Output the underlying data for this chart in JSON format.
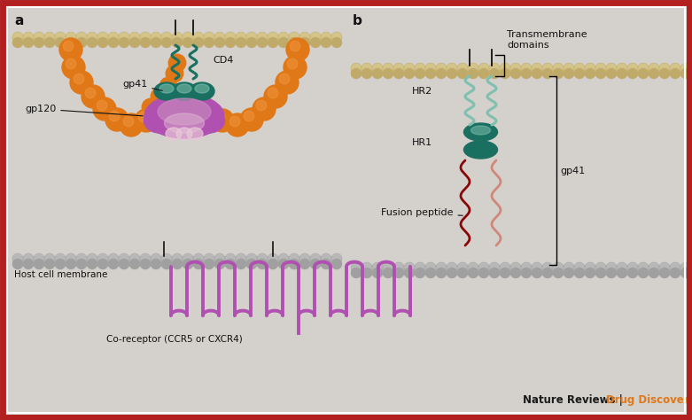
{
  "bg_color": "#d4d0cc",
  "border_color_outer": "#b22020",
  "border_color_inner": "#ffffff",
  "tan_light": "#d4c48a",
  "tan_dark": "#c0aa6a",
  "gray_mem_light": "#b8b8b8",
  "gray_mem_dark": "#a0a0a0",
  "orange": "#e07818",
  "orange_hi": "#f09840",
  "purple": "#b050b0",
  "mauve": "#c890c0",
  "pink": "#e8c8d8",
  "teal_dark": "#1a7060",
  "teal_mid": "#2a9080",
  "teal_light": "#80c0b0",
  "red_dark": "#880808",
  "salmon": "#d08878",
  "black": "#111111",
  "orange_journal": "#e07818",
  "label_a": "a",
  "label_b": "b",
  "lbl_gp41": "gp41",
  "lbl_gp120": "gp120",
  "lbl_cd4": "CD4",
  "lbl_host": "Host cell membrane",
  "lbl_coreceptor": "Co-receptor (CCR5 or CXCR4)",
  "lbl_transmem": "Transmembrane\ndomains",
  "lbl_hr2": "HR2",
  "lbl_hr1": "HR1",
  "lbl_gp41b": "gp41",
  "lbl_fusion": "Fusion peptide"
}
